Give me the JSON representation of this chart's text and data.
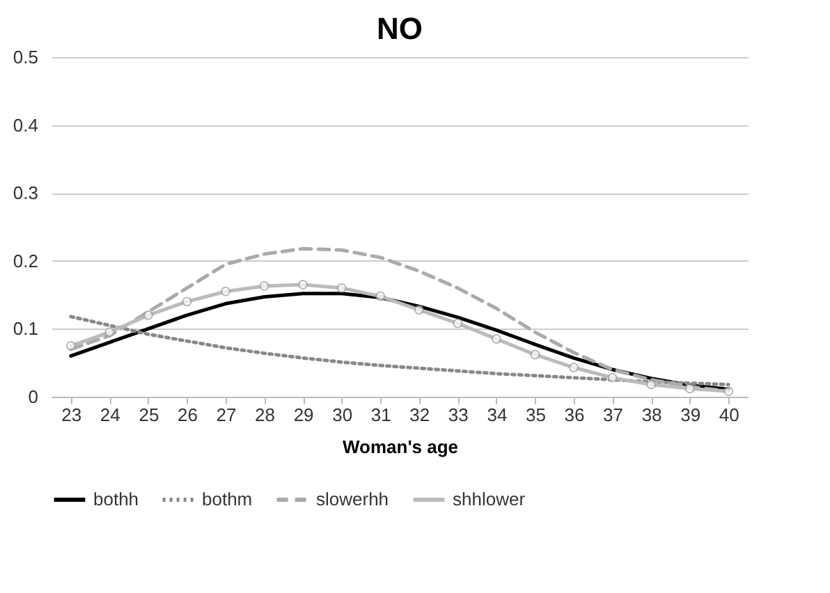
{
  "chart_data": {
    "type": "line",
    "title": "NO",
    "xlabel": "Woman's age",
    "categories": [
      "23",
      "24",
      "25",
      "26",
      "27",
      "28",
      "29",
      "30",
      "31",
      "32",
      "33",
      "34",
      "35",
      "36",
      "37",
      "38",
      "39",
      "40"
    ],
    "series": [
      {
        "name": "bothh",
        "color": "#000000",
        "line_style": "solid",
        "values": [
          0.06,
          0.08,
          0.1,
          0.12,
          0.137,
          0.147,
          0.152,
          0.152,
          0.146,
          0.133,
          0.117,
          0.098,
          0.077,
          0.057,
          0.04,
          0.027,
          0.017,
          0.011
        ]
      },
      {
        "name": "bothm",
        "color": "#888888",
        "line_style": "dotted",
        "values": [
          0.118,
          0.105,
          0.092,
          0.082,
          0.072,
          0.064,
          0.057,
          0.051,
          0.046,
          0.042,
          0.038,
          0.034,
          0.031,
          0.028,
          0.025,
          0.022,
          0.02,
          0.018
        ]
      },
      {
        "name": "slowerhh",
        "color": "#aaaaaa",
        "line_style": "dashed",
        "values": [
          0.07,
          0.09,
          0.125,
          0.16,
          0.195,
          0.21,
          0.218,
          0.216,
          0.205,
          0.185,
          0.16,
          0.13,
          0.095,
          0.065,
          0.04,
          0.025,
          0.015,
          0.008
        ]
      },
      {
        "name": "shhlower",
        "color": "#bbbbbb",
        "line_style": "solid",
        "marker": "circle",
        "values": [
          0.075,
          0.095,
          0.12,
          0.14,
          0.155,
          0.163,
          0.165,
          0.16,
          0.148,
          0.128,
          0.108,
          0.085,
          0.062,
          0.043,
          0.028,
          0.018,
          0.012,
          0.008
        ]
      }
    ],
    "ylim": [
      0,
      0.5
    ],
    "yticks": [
      0,
      0.1,
      0.2,
      0.3,
      0.4,
      0.5
    ],
    "grid": "y",
    "legend": "bottom"
  }
}
